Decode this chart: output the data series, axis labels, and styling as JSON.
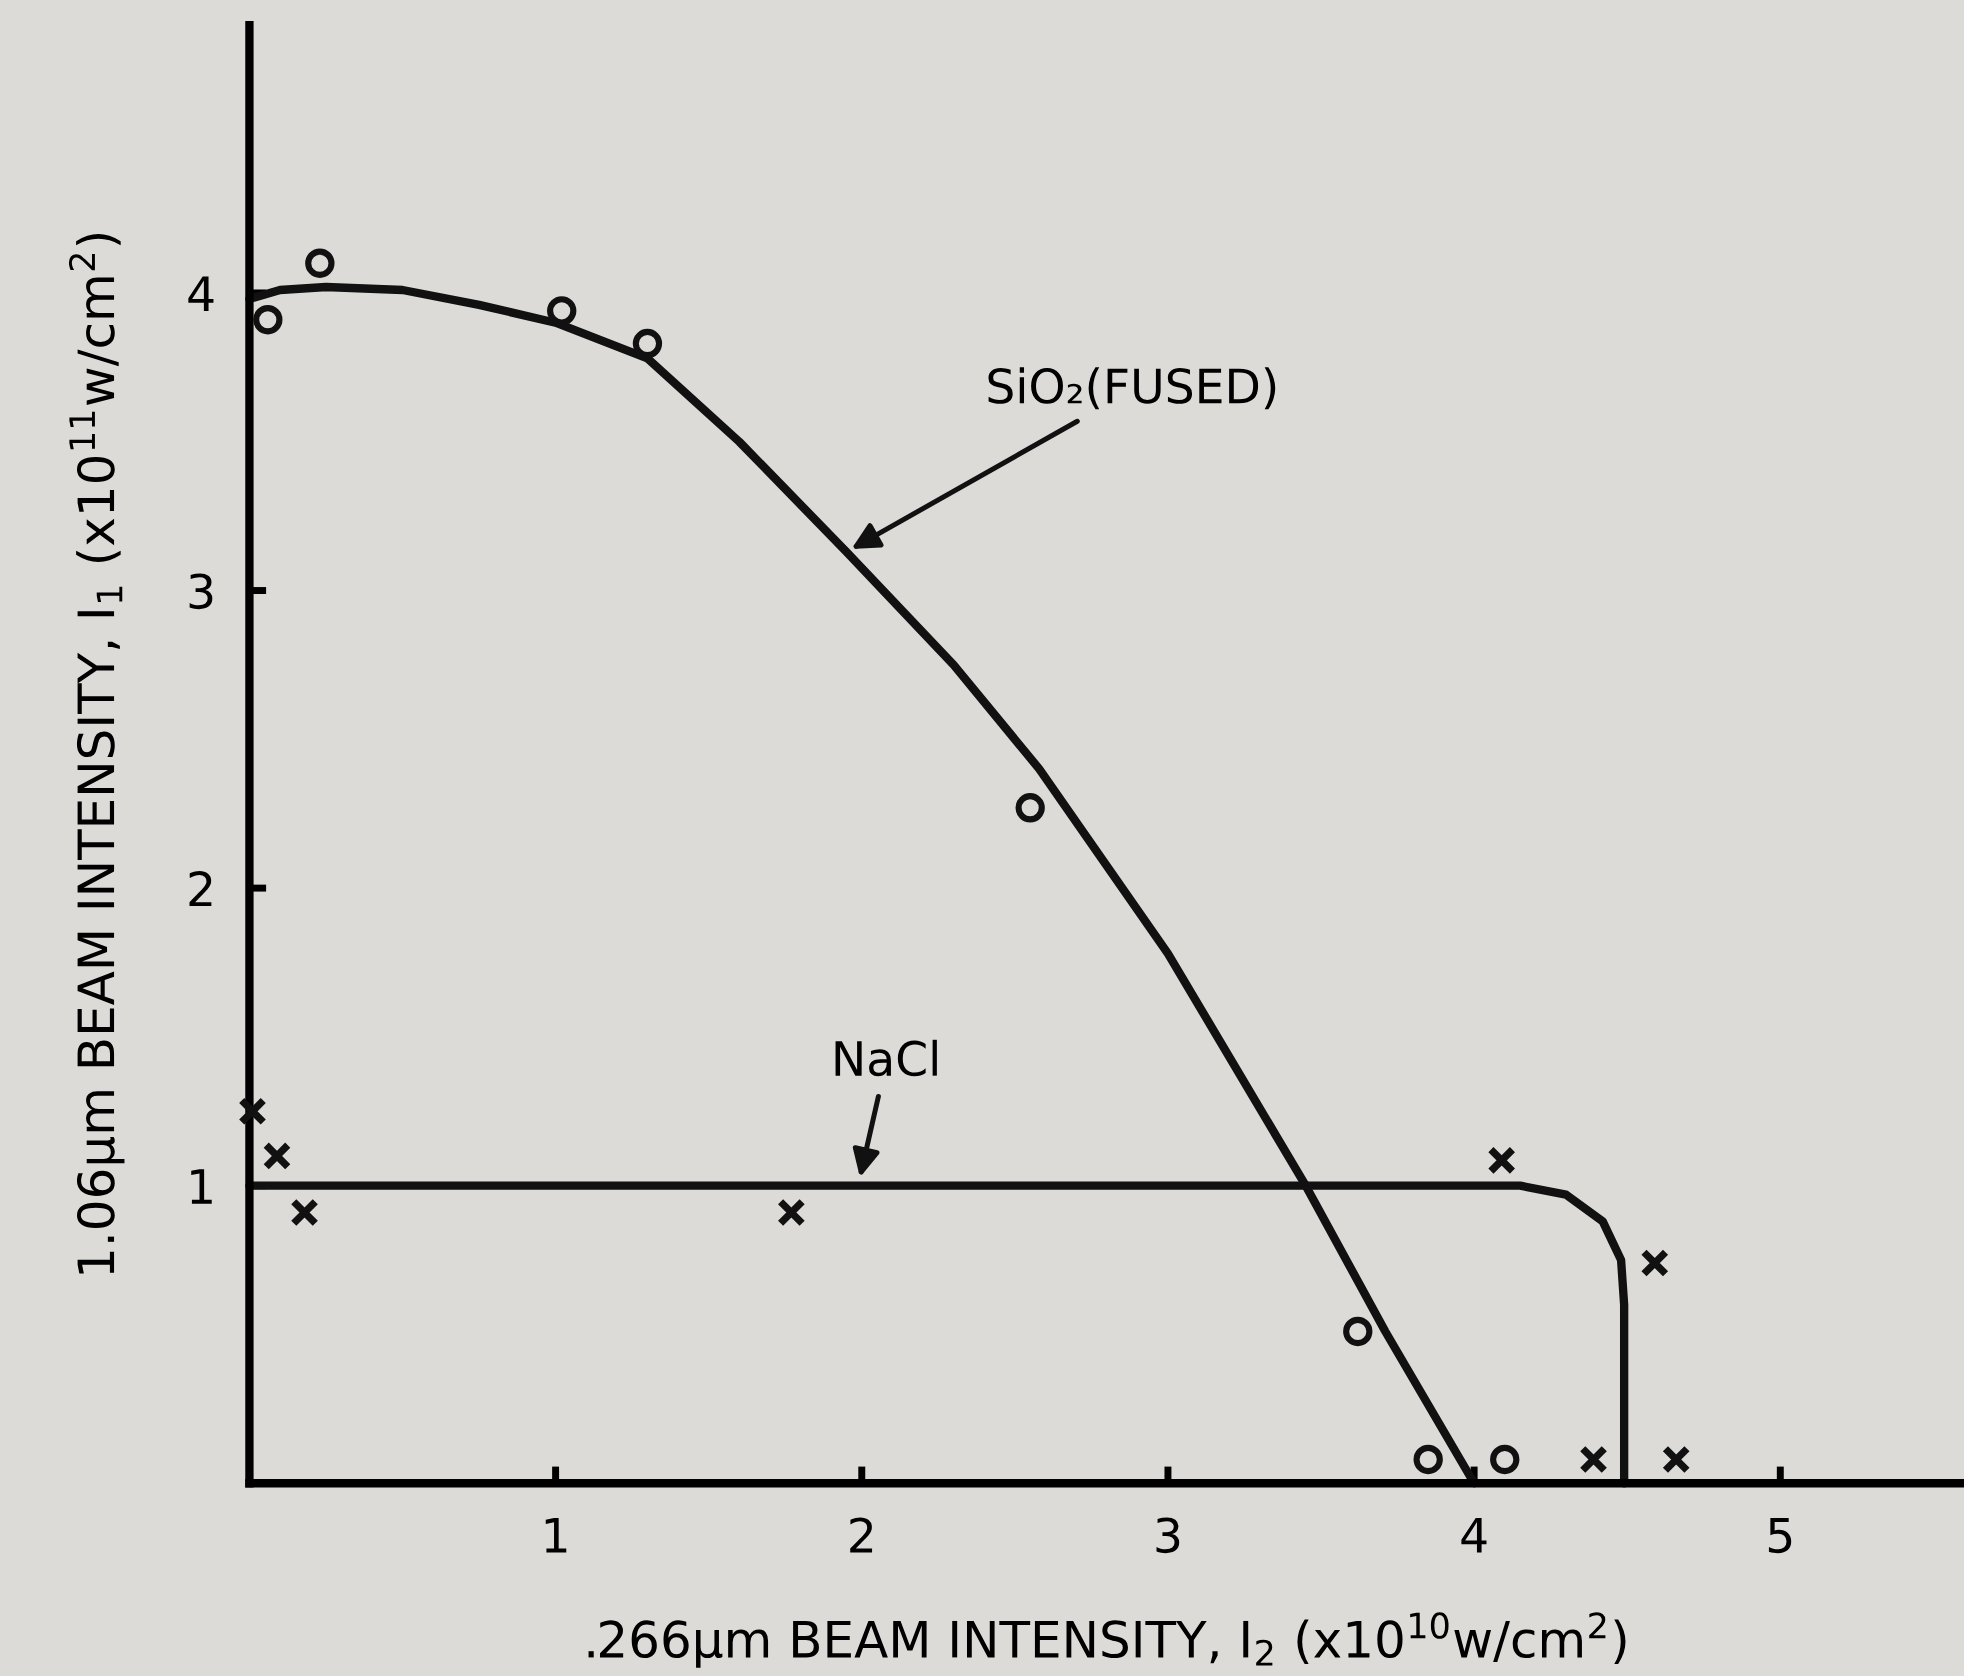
{
  "chart_data": {
    "type": "line",
    "xlabel": ".266μm BEAM INTENSITY, I$_{2}$ (x10$^{10}$w/cm$^{2}$)",
    "ylabel": "1.06μm BEAM INTENSITY, I$_{1}$ (x10$^{11}$w/cm$^{2}$)",
    "xlim": [
      0,
      5.6
    ],
    "ylim": [
      0,
      4.9
    ],
    "xticks": [
      1,
      2,
      3,
      4,
      5
    ],
    "yticks": [
      1,
      2,
      3,
      4
    ],
    "grid": false,
    "legend": false,
    "series": [
      {
        "color": "#111111",
        "marker": "none",
        "line_style": "solid",
        "x": [
          0,
          0.1,
          0.25,
          0.5,
          0.75,
          1.0,
          1.3,
          1.6,
          1.95,
          2.3,
          2.58,
          3.0,
          3.45,
          3.71,
          4.0
        ],
        "values": [
          3.98,
          4.01,
          4.02,
          4.01,
          3.96,
          3.9,
          3.78,
          3.5,
          3.13,
          2.75,
          2.4,
          1.78,
          1.0,
          0.51,
          0
        ]
      },
      {
        "color": "#111111",
        "marker": "none",
        "line_style": "solid",
        "x": [
          0,
          4.15,
          4.3,
          4.42,
          4.48,
          4.49,
          4.49
        ],
        "values": [
          1,
          1,
          0.97,
          0.88,
          0.75,
          0.6,
          0
        ]
      },
      {
        "type": "scatter",
        "color": "#111111",
        "marker": "circle",
        "x": [
          0.06,
          0.23,
          1.02,
          1.3,
          2.55,
          3.62,
          3.85,
          4.1
        ],
        "values": [
          3.91,
          4.1,
          3.94,
          3.83,
          2.27,
          0.51,
          0.08,
          0.08
        ]
      },
      {
        "type": "scatter",
        "color": "#111111",
        "marker": "cross",
        "x": [
          0.01,
          0.09,
          0.18,
          1.77,
          4.09,
          4.59,
          4.39,
          4.66
        ],
        "values": [
          1.25,
          1.1,
          0.91,
          0.91,
          1.085,
          0.74,
          0.08,
          0.08
        ]
      }
    ],
    "annotations": [
      {
        "text": "SiO₂(FUSED)",
        "x": 1.95,
        "y": 3.13
      },
      {
        "text": "NaCl",
        "x": 1.99,
        "y": 1.01
      }
    ]
  }
}
